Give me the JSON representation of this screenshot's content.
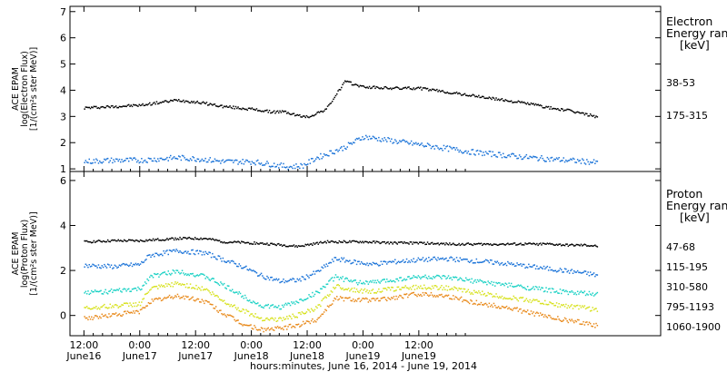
{
  "chart_data": [
    {
      "type": "scatter",
      "panel": "electron",
      "ylabel_lines": [
        "ACE EPAM",
        "log(Electron Flux)",
        "[1/(cm²s ster MeV)]"
      ],
      "ylim": [
        0.9,
        7.2
      ],
      "yticks": [
        1,
        2,
        3,
        4,
        5,
        6,
        7
      ],
      "legend": {
        "title_lines": [
          "Electron",
          "Energy ranges",
          "[keV]"
        ],
        "position": "right"
      },
      "series": [
        {
          "name": "38-53",
          "color": "#000000",
          "x_hours": [
            0,
            6,
            12,
            20,
            25,
            30,
            36,
            40,
            43,
            46,
            48,
            52,
            56,
            60,
            66,
            72,
            78,
            84,
            90,
            96,
            100,
            104,
            108,
            110.5
          ],
          "values": [
            3.35,
            3.4,
            3.45,
            3.65,
            3.55,
            3.4,
            3.3,
            3.2,
            3.2,
            3.05,
            3.0,
            3.3,
            4.35,
            4.15,
            4.1,
            4.1,
            3.95,
            3.8,
            3.65,
            3.5,
            3.35,
            3.25,
            3.1,
            3.0
          ]
        },
        {
          "name": "175-315",
          "color": "#1a73d8",
          "x_hours": [
            0,
            6,
            12,
            20,
            25,
            30,
            36,
            40,
            44,
            47,
            50,
            56,
            60,
            66,
            72,
            78,
            84,
            90,
            96,
            100,
            104,
            108,
            110.5
          ],
          "values": [
            1.3,
            1.35,
            1.35,
            1.45,
            1.4,
            1.3,
            1.3,
            1.2,
            1.1,
            1.15,
            1.45,
            1.85,
            2.25,
            2.1,
            1.95,
            1.8,
            1.65,
            1.55,
            1.45,
            1.4,
            1.35,
            1.3,
            1.25
          ]
        }
      ]
    },
    {
      "type": "scatter",
      "panel": "proton",
      "ylabel_lines": [
        "ACE EPAM",
        "log(Proton Flux)",
        "[1/(cm²s ster MeV)]"
      ],
      "ylim": [
        -0.9,
        6.4
      ],
      "yticks": [
        0,
        2,
        4,
        6
      ],
      "legend": {
        "title_lines": [
          "Proton",
          "Energy ranges",
          "[keV]"
        ],
        "position": "right"
      },
      "series": [
        {
          "name": "47-68",
          "color": "#000000",
          "x_hours": [
            0,
            6,
            12,
            20,
            26,
            30,
            36,
            40,
            46,
            52,
            60,
            66,
            72,
            78,
            84,
            90,
            96,
            100,
            104,
            108,
            110.5
          ],
          "values": [
            3.3,
            3.35,
            3.35,
            3.45,
            3.45,
            3.3,
            3.25,
            3.2,
            3.1,
            3.3,
            3.3,
            3.25,
            3.25,
            3.2,
            3.2,
            3.2,
            3.2,
            3.2,
            3.15,
            3.15,
            3.1
          ]
        },
        {
          "name": "115-195",
          "color": "#1a73d8",
          "x_hours": [
            0,
            6,
            12,
            14,
            20,
            26,
            30,
            34,
            38,
            42,
            46,
            50,
            54,
            58,
            62,
            66,
            72,
            78,
            84,
            90,
            96,
            100,
            104,
            108,
            110.5
          ],
          "values": [
            2.25,
            2.2,
            2.3,
            2.7,
            2.9,
            2.8,
            2.5,
            2.2,
            1.8,
            1.55,
            1.6,
            1.95,
            2.55,
            2.4,
            2.3,
            2.4,
            2.5,
            2.55,
            2.45,
            2.35,
            2.2,
            2.1,
            2.0,
            1.9,
            1.8
          ]
        },
        {
          "name": "310-580",
          "color": "#19d1c4",
          "x_hours": [
            0,
            6,
            12,
            14,
            20,
            26,
            30,
            34,
            38,
            42,
            46,
            50,
            54,
            58,
            62,
            66,
            72,
            78,
            84,
            90,
            96,
            100,
            104,
            108,
            110.5
          ],
          "values": [
            1.05,
            1.1,
            1.2,
            1.75,
            2.0,
            1.75,
            1.35,
            0.9,
            0.45,
            0.4,
            0.65,
            1.05,
            1.75,
            1.5,
            1.5,
            1.6,
            1.75,
            1.7,
            1.55,
            1.4,
            1.25,
            1.15,
            1.05,
            1.0,
            0.95
          ]
        },
        {
          "name": "795-1193",
          "color": "#d7e21e",
          "x_hours": [
            0,
            6,
            12,
            14,
            20,
            26,
            30,
            34,
            38,
            42,
            46,
            50,
            54,
            58,
            62,
            66,
            72,
            78,
            84,
            90,
            96,
            100,
            104,
            108,
            110.5
          ],
          "values": [
            0.35,
            0.45,
            0.55,
            1.2,
            1.45,
            1.2,
            0.65,
            0.25,
            -0.1,
            -0.15,
            0.05,
            0.35,
            1.35,
            1.15,
            1.1,
            1.2,
            1.3,
            1.25,
            1.05,
            0.85,
            0.7,
            0.55,
            0.45,
            0.35,
            0.25
          ]
        },
        {
          "name": "1060-1900",
          "color": "#e8891a",
          "x_hours": [
            0,
            6,
            12,
            14,
            20,
            26,
            30,
            34,
            38,
            42,
            46,
            50,
            54,
            58,
            62,
            66,
            72,
            78,
            84,
            90,
            96,
            100,
            104,
            108,
            110.5
          ],
          "values": [
            -0.1,
            0.05,
            0.2,
            0.65,
            0.9,
            0.65,
            0.1,
            -0.35,
            -0.6,
            -0.55,
            -0.4,
            -0.15,
            0.8,
            0.75,
            0.7,
            0.8,
            1.0,
            0.9,
            0.6,
            0.4,
            0.15,
            -0.05,
            -0.2,
            -0.3,
            -0.45
          ]
        }
      ]
    }
  ],
  "x_axis": {
    "xlim_hours": [
      -3,
      124
    ],
    "ticks": [
      {
        "hour": 0,
        "top": "12:00",
        "bottom": "June16"
      },
      {
        "hour": 12,
        "top": "0:00",
        "bottom": "June17"
      },
      {
        "hour": 24,
        "top": "12:00",
        "bottom": "June17"
      },
      {
        "hour": 36,
        "top": "0:00",
        "bottom": "June18"
      },
      {
        "hour": 48,
        "top": "12:00",
        "bottom": "June18"
      },
      {
        "hour": 60,
        "top": "0:00",
        "bottom": "June19"
      },
      {
        "hour": 72,
        "top": "12:00",
        "bottom": "June19"
      }
    ],
    "label": "hours:minutes, June 16, 2014 - June 19, 2014"
  }
}
